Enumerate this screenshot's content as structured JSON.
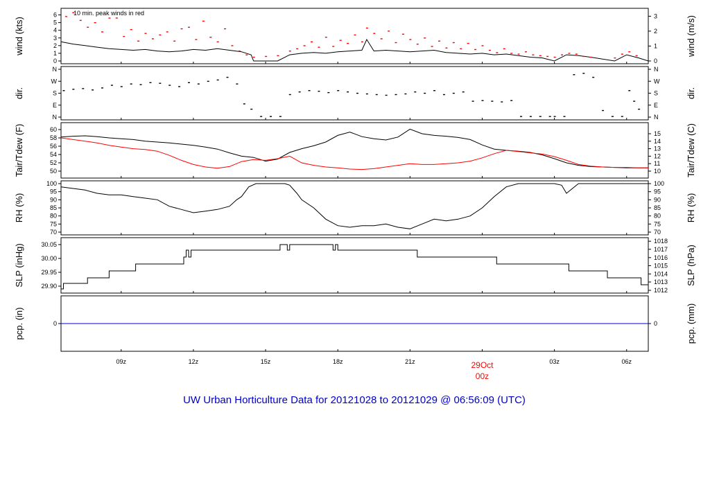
{
  "title": "UW Urban Horticulture Data for 20121028  to  20121029 @ 06:56:09  (UTC)",
  "colors": {
    "primary": "#000000",
    "secondary": "#ff0000",
    "title": "#0000cc",
    "precip": "#0000cc"
  },
  "x_axis": {
    "range": [
      6.5,
      30.9
    ],
    "ticks": [
      {
        "value": 9,
        "label": "09z"
      },
      {
        "value": 12,
        "label": "12z"
      },
      {
        "value": 15,
        "label": "15z"
      },
      {
        "value": 18,
        "label": "18z"
      },
      {
        "value": 21,
        "label": "21z"
      },
      {
        "value": 27,
        "label": "03z"
      },
      {
        "value": 30,
        "label": "06z"
      }
    ],
    "day_marker": {
      "value": 24,
      "line1": "29Oct",
      "line2": "00z"
    }
  },
  "chart_data": [
    {
      "type": "line",
      "key": "wind",
      "left_label": "wind (kts)",
      "right_label": "wind (m/s)",
      "annotation": "10 min. peak winds in red",
      "ylim": [
        0,
        6.5
      ],
      "left_ticks": [
        0,
        1,
        2,
        3,
        4,
        5,
        6
      ],
      "right_ticks": [
        {
          "label": "0",
          "value": 0
        },
        {
          "label": "1",
          "value": 1.94
        },
        {
          "label": "2",
          "value": 3.89
        },
        {
          "label": "3",
          "value": 5.83
        }
      ],
      "series": [
        {
          "color": "#000000",
          "style": "line",
          "x": [
            6.5,
            7,
            7.5,
            8,
            8.5,
            9,
            9.5,
            10,
            10.5,
            11,
            11.5,
            12,
            12.5,
            13,
            13.5,
            14,
            14.4,
            14.5,
            15.5,
            16,
            16.5,
            17,
            17.5,
            18,
            18.5,
            19,
            19.2,
            19.5,
            20,
            20.5,
            21,
            21.5,
            22,
            22.5,
            23,
            23.5,
            24,
            24.5,
            25,
            25.5,
            26,
            26.5,
            27,
            27.5,
            28,
            28.5,
            29.5,
            30,
            30.5,
            30.9
          ],
          "y": [
            2.5,
            2.2,
            2.0,
            1.8,
            1.6,
            1.5,
            1.4,
            1.5,
            1.3,
            1.2,
            1.3,
            1.5,
            1.4,
            1.6,
            1.4,
            1.2,
            0.8,
            0.0,
            0.0,
            0.8,
            1.0,
            1.1,
            1.0,
            1.2,
            1.3,
            1.4,
            2.8,
            1.3,
            1.4,
            1.3,
            1.2,
            1.3,
            1.4,
            1.1,
            1.0,
            0.9,
            1.0,
            0.8,
            0.9,
            0.7,
            0.5,
            0.4,
            0.0,
            0.8,
            0.7,
            0.5,
            0.0,
            0.8,
            0.4,
            0.0
          ]
        },
        {
          "color": "#ff0000",
          "style": "dots",
          "x": [
            6.7,
            7,
            7.3,
            7.6,
            7.9,
            8.2,
            8.5,
            8.8,
            9.1,
            9.4,
            9.7,
            10,
            10.3,
            10.6,
            10.9,
            11.2,
            11.5,
            11.8,
            12.1,
            12.4,
            12.7,
            13,
            13.3,
            13.6,
            13.9,
            14.2,
            14.5,
            15,
            15.5,
            16,
            16.3,
            16.6,
            16.9,
            17.2,
            17.5,
            17.8,
            18.1,
            18.4,
            18.7,
            19,
            19.2,
            19.5,
            19.8,
            20.1,
            20.4,
            20.7,
            21,
            21.3,
            21.6,
            21.9,
            22.2,
            22.5,
            22.8,
            23.1,
            23.4,
            23.7,
            24,
            24.3,
            24.6,
            24.9,
            25.2,
            25.5,
            25.8,
            26.1,
            26.4,
            26.7,
            27,
            27.3,
            27.6,
            27.9,
            28.2,
            28.5,
            29.5,
            29.8,
            30.1,
            30.4
          ],
          "y": [
            5.8,
            6.3,
            5.3,
            4.4,
            5.0,
            3.8,
            5.6,
            5.6,
            3.2,
            4.1,
            2.6,
            3.6,
            2.9,
            3.4,
            3.8,
            2.6,
            4.2,
            4.4,
            2.8,
            5.2,
            3.1,
            2.5,
            4.2,
            2.0,
            1.3,
            0.8,
            0.5,
            0.6,
            0.7,
            1.3,
            1.6,
            2.0,
            2.5,
            1.8,
            3.1,
            1.9,
            2.7,
            2.3,
            3.4,
            2.5,
            4.3,
            3.6,
            2.9,
            3.9,
            2.4,
            3.5,
            2.8,
            2.2,
            3.0,
            1.9,
            2.6,
            1.7,
            2.4,
            1.6,
            2.3,
            1.5,
            2.0,
            1.4,
            1.1,
            1.6,
            1.0,
            0.9,
            1.2,
            0.8,
            0.7,
            0.6,
            0.5,
            0.8,
            1.0,
            0.9,
            0.6,
            0.5,
            0.4,
            0.9,
            1.2,
            0.7
          ]
        }
      ]
    },
    {
      "type": "scatter",
      "key": "dir",
      "left_label": "dir.",
      "right_label": "dir.",
      "ylim": [
        0,
        360
      ],
      "left_ticks": [
        {
          "label": "N",
          "value": 0
        },
        {
          "label": "E",
          "value": 90
        },
        {
          "label": "S",
          "value": 180
        },
        {
          "label": "W",
          "value": 270
        },
        {
          "label": "N",
          "value": 360
        }
      ],
      "right_ticks": [
        {
          "label": "N",
          "value": 0
        },
        {
          "label": "E",
          "value": 90
        },
        {
          "label": "S",
          "value": 180
        },
        {
          "label": "W",
          "value": 270
        },
        {
          "label": "N",
          "value": 360
        }
      ],
      "series": [
        {
          "color": "#000000",
          "style": "dots",
          "x": [
            6.6,
            7,
            7.4,
            7.8,
            8.2,
            8.6,
            9,
            9.4,
            9.8,
            10.2,
            10.6,
            11,
            11.4,
            11.8,
            12.2,
            12.6,
            13,
            13.4,
            13.8,
            14.1,
            14.4,
            14.8,
            15.2,
            15.6,
            16,
            16.4,
            16.8,
            17.2,
            17.6,
            18,
            18.4,
            18.8,
            19.2,
            19.6,
            20,
            20.4,
            20.8,
            21.2,
            21.6,
            22,
            22.4,
            22.8,
            23.2,
            23.6,
            24,
            24.4,
            24.8,
            25.2,
            25.6,
            26,
            26.4,
            26.8,
            27,
            27.4,
            27.8,
            28.2,
            28.6,
            29,
            29.4,
            29.8,
            30.1,
            30.3,
            30.5
          ],
          "y": [
            200,
            210,
            215,
            205,
            220,
            240,
            230,
            250,
            245,
            260,
            255,
            240,
            230,
            260,
            250,
            270,
            280,
            300,
            250,
            100,
            60,
            5,
            5,
            5,
            170,
            190,
            200,
            195,
            185,
            200,
            190,
            180,
            175,
            170,
            165,
            170,
            175,
            190,
            180,
            200,
            170,
            180,
            190,
            120,
            125,
            120,
            115,
            125,
            5,
            5,
            5,
            5,
            5,
            5,
            320,
            330,
            300,
            50,
            5,
            5,
            200,
            120,
            60
          ]
        }
      ]
    },
    {
      "type": "line",
      "key": "temp",
      "left_label": "Tair/Tdew (F)",
      "right_label": "Tair/Tdew (C)",
      "ylim": [
        49,
        61
      ],
      "left_ticks": [
        50,
        52,
        54,
        56,
        58,
        60
      ],
      "right_ticks": [
        {
          "label": "10",
          "value": 50
        },
        {
          "label": "11",
          "value": 51.8
        },
        {
          "label": "12",
          "value": 53.6
        },
        {
          "label": "13",
          "value": 55.4
        },
        {
          "label": "14",
          "value": 57.2
        },
        {
          "label": "15",
          "value": 59.0
        }
      ],
      "series": [
        {
          "color": "#000000",
          "style": "line",
          "x": [
            6.5,
            7,
            7.5,
            8,
            8.5,
            9,
            9.5,
            10,
            10.5,
            11,
            11.5,
            12,
            12.5,
            13,
            13.5,
            14,
            14.5,
            15,
            15.5,
            16,
            16.5,
            17,
            17.5,
            18,
            18.5,
            19,
            19.5,
            20,
            20.5,
            21,
            21.5,
            22,
            22.5,
            23,
            23.5,
            24,
            24.5,
            25,
            25.5,
            26,
            26.5,
            27,
            27.5,
            28,
            28.5,
            29,
            29.5,
            30,
            30.5,
            30.9
          ],
          "y": [
            58.2,
            58.4,
            58.5,
            58.3,
            58.0,
            57.8,
            57.6,
            57.2,
            57.0,
            56.8,
            56.5,
            56.2,
            55.8,
            55.3,
            54.4,
            53.6,
            53.3,
            52.4,
            52.9,
            54.5,
            55.4,
            56.1,
            57.0,
            58.6,
            59.4,
            58.3,
            57.8,
            57.5,
            58.2,
            60.1,
            59.0,
            58.6,
            58.4,
            58.1,
            57.6,
            56.3,
            55.3,
            55.0,
            54.8,
            54.5,
            53.9,
            53.0,
            52.0,
            51.4,
            51.1,
            51.0,
            50.9,
            50.8,
            50.8,
            50.8
          ]
        },
        {
          "color": "#ff0000",
          "style": "line",
          "x": [
            6.5,
            7,
            7.5,
            8,
            8.5,
            9,
            9.5,
            10,
            10.5,
            11,
            11.5,
            12,
            12.5,
            13,
            13.5,
            14,
            14.5,
            15,
            15.5,
            16,
            16.5,
            17,
            17.5,
            18,
            18.5,
            19,
            19.5,
            20,
            20.5,
            21,
            21.5,
            22,
            22.5,
            23,
            23.5,
            24,
            24.5,
            25,
            25.5,
            26,
            26.5,
            27,
            27.5,
            28,
            28.5,
            29,
            29.5,
            30,
            30.5,
            30.9
          ],
          "y": [
            58.0,
            57.6,
            57.2,
            56.8,
            56.2,
            55.8,
            55.4,
            55.2,
            54.8,
            53.8,
            52.6,
            51.6,
            51.0,
            50.7,
            51.1,
            52.3,
            52.8,
            52.6,
            53.0,
            53.6,
            52.0,
            51.4,
            51.0,
            50.8,
            50.5,
            50.4,
            50.6,
            51.0,
            51.4,
            51.8,
            51.6,
            51.6,
            51.8,
            52.0,
            52.4,
            53.2,
            54.2,
            55.0,
            54.7,
            54.4,
            54.1,
            53.5,
            52.6,
            51.6,
            51.2,
            51.0,
            50.9,
            50.9,
            50.8,
            50.8
          ]
        }
      ]
    },
    {
      "type": "line",
      "key": "rh",
      "left_label": "RH (%)",
      "right_label": "RH (%)",
      "ylim": [
        70,
        100
      ],
      "left_ticks": [
        70,
        75,
        80,
        85,
        90,
        95,
        100
      ],
      "right_ticks": [
        {
          "label": "70",
          "value": 70
        },
        {
          "label": "75",
          "value": 75
        },
        {
          "label": "80",
          "value": 80
        },
        {
          "label": "85",
          "value": 85
        },
        {
          "label": "90",
          "value": 90
        },
        {
          "label": "95",
          "value": 95
        },
        {
          "label": "100",
          "value": 100
        }
      ],
      "series": [
        {
          "color": "#000000",
          "style": "line",
          "x": [
            6.5,
            7,
            7.5,
            8,
            8.5,
            9,
            9.5,
            10,
            10.5,
            11,
            11.5,
            12,
            12.5,
            13,
            13.5,
            13.8,
            14,
            14.3,
            14.6,
            15,
            15.5,
            15.8,
            16,
            16.3,
            16.5,
            17,
            17.5,
            18,
            18.5,
            19,
            19.5,
            20,
            20.5,
            21,
            21.5,
            22,
            22.5,
            23,
            23.5,
            24,
            24.5,
            25,
            25.5,
            26,
            26.5,
            27,
            27.3,
            27.5,
            28,
            28.5,
            29,
            29.5,
            30,
            30.5,
            30.9
          ],
          "y": [
            98,
            97,
            96,
            94,
            93,
            93,
            92,
            91,
            90,
            86,
            84,
            82,
            83,
            84,
            86,
            90,
            92,
            98,
            100,
            100,
            100,
            100,
            99,
            94,
            90,
            85,
            78,
            74,
            73,
            74,
            74,
            75,
            73,
            72,
            75,
            78,
            77,
            78,
            80,
            85,
            92,
            98,
            100,
            100,
            100,
            100,
            99,
            94,
            100,
            100,
            100,
            100,
            100,
            100,
            100
          ]
        }
      ]
    },
    {
      "type": "line",
      "key": "slp",
      "left_label": "SLP (inHg)",
      "right_label": "SLP (hPa)",
      "ylim": [
        29.885,
        30.065
      ],
      "left_ticks": [
        {
          "label": "29.90",
          "value": 29.9
        },
        {
          "label": "29.95",
          "value": 29.95
        },
        {
          "label": "30.00",
          "value": 30.0
        },
        {
          "label": "30.05",
          "value": 30.05
        }
      ],
      "right_ticks": [
        {
          "label": "1012",
          "value": 29.885
        },
        {
          "label": "1013",
          "value": 29.915
        },
        {
          "label": "1014",
          "value": 29.944
        },
        {
          "label": "1015",
          "value": 29.974
        },
        {
          "label": "1016",
          "value": 30.003
        },
        {
          "label": "1017",
          "value": 30.033
        },
        {
          "label": "1018",
          "value": 30.062
        }
      ],
      "series": [
        {
          "color": "#000000",
          "style": "step",
          "x": [
            6.5,
            6.6,
            7.6,
            8.5,
            9.6,
            11.6,
            11.7,
            11.8,
            11.9,
            15.5,
            15.6,
            15.9,
            16.0,
            17.6,
            17.8,
            17.9,
            18.0,
            21.2,
            21.3,
            24.5,
            24.6,
            27.5,
            27.6,
            29.1,
            29.2,
            30.5,
            30.6,
            30.9
          ],
          "y": [
            29.89,
            29.91,
            29.93,
            29.955,
            29.98,
            30.005,
            30.03,
            30.005,
            30.03,
            30.03,
            30.05,
            30.03,
            30.05,
            30.05,
            30.03,
            30.05,
            30.03,
            30.03,
            30.005,
            30.005,
            29.98,
            29.98,
            29.955,
            29.955,
            29.93,
            29.93,
            29.905,
            29.905
          ]
        }
      ]
    },
    {
      "type": "line",
      "key": "pcp",
      "left_label": "pcp. (in)",
      "right_label": "pcp. (mm)",
      "ylim": [
        -1,
        1
      ],
      "left_ticks": [
        {
          "label": "0",
          "value": 0
        }
      ],
      "right_ticks": [
        {
          "label": "0",
          "value": 0
        }
      ],
      "series": [
        {
          "color": "#0000cc",
          "style": "line",
          "x": [
            6.5,
            30.9
          ],
          "y": [
            0,
            0
          ]
        }
      ]
    }
  ]
}
